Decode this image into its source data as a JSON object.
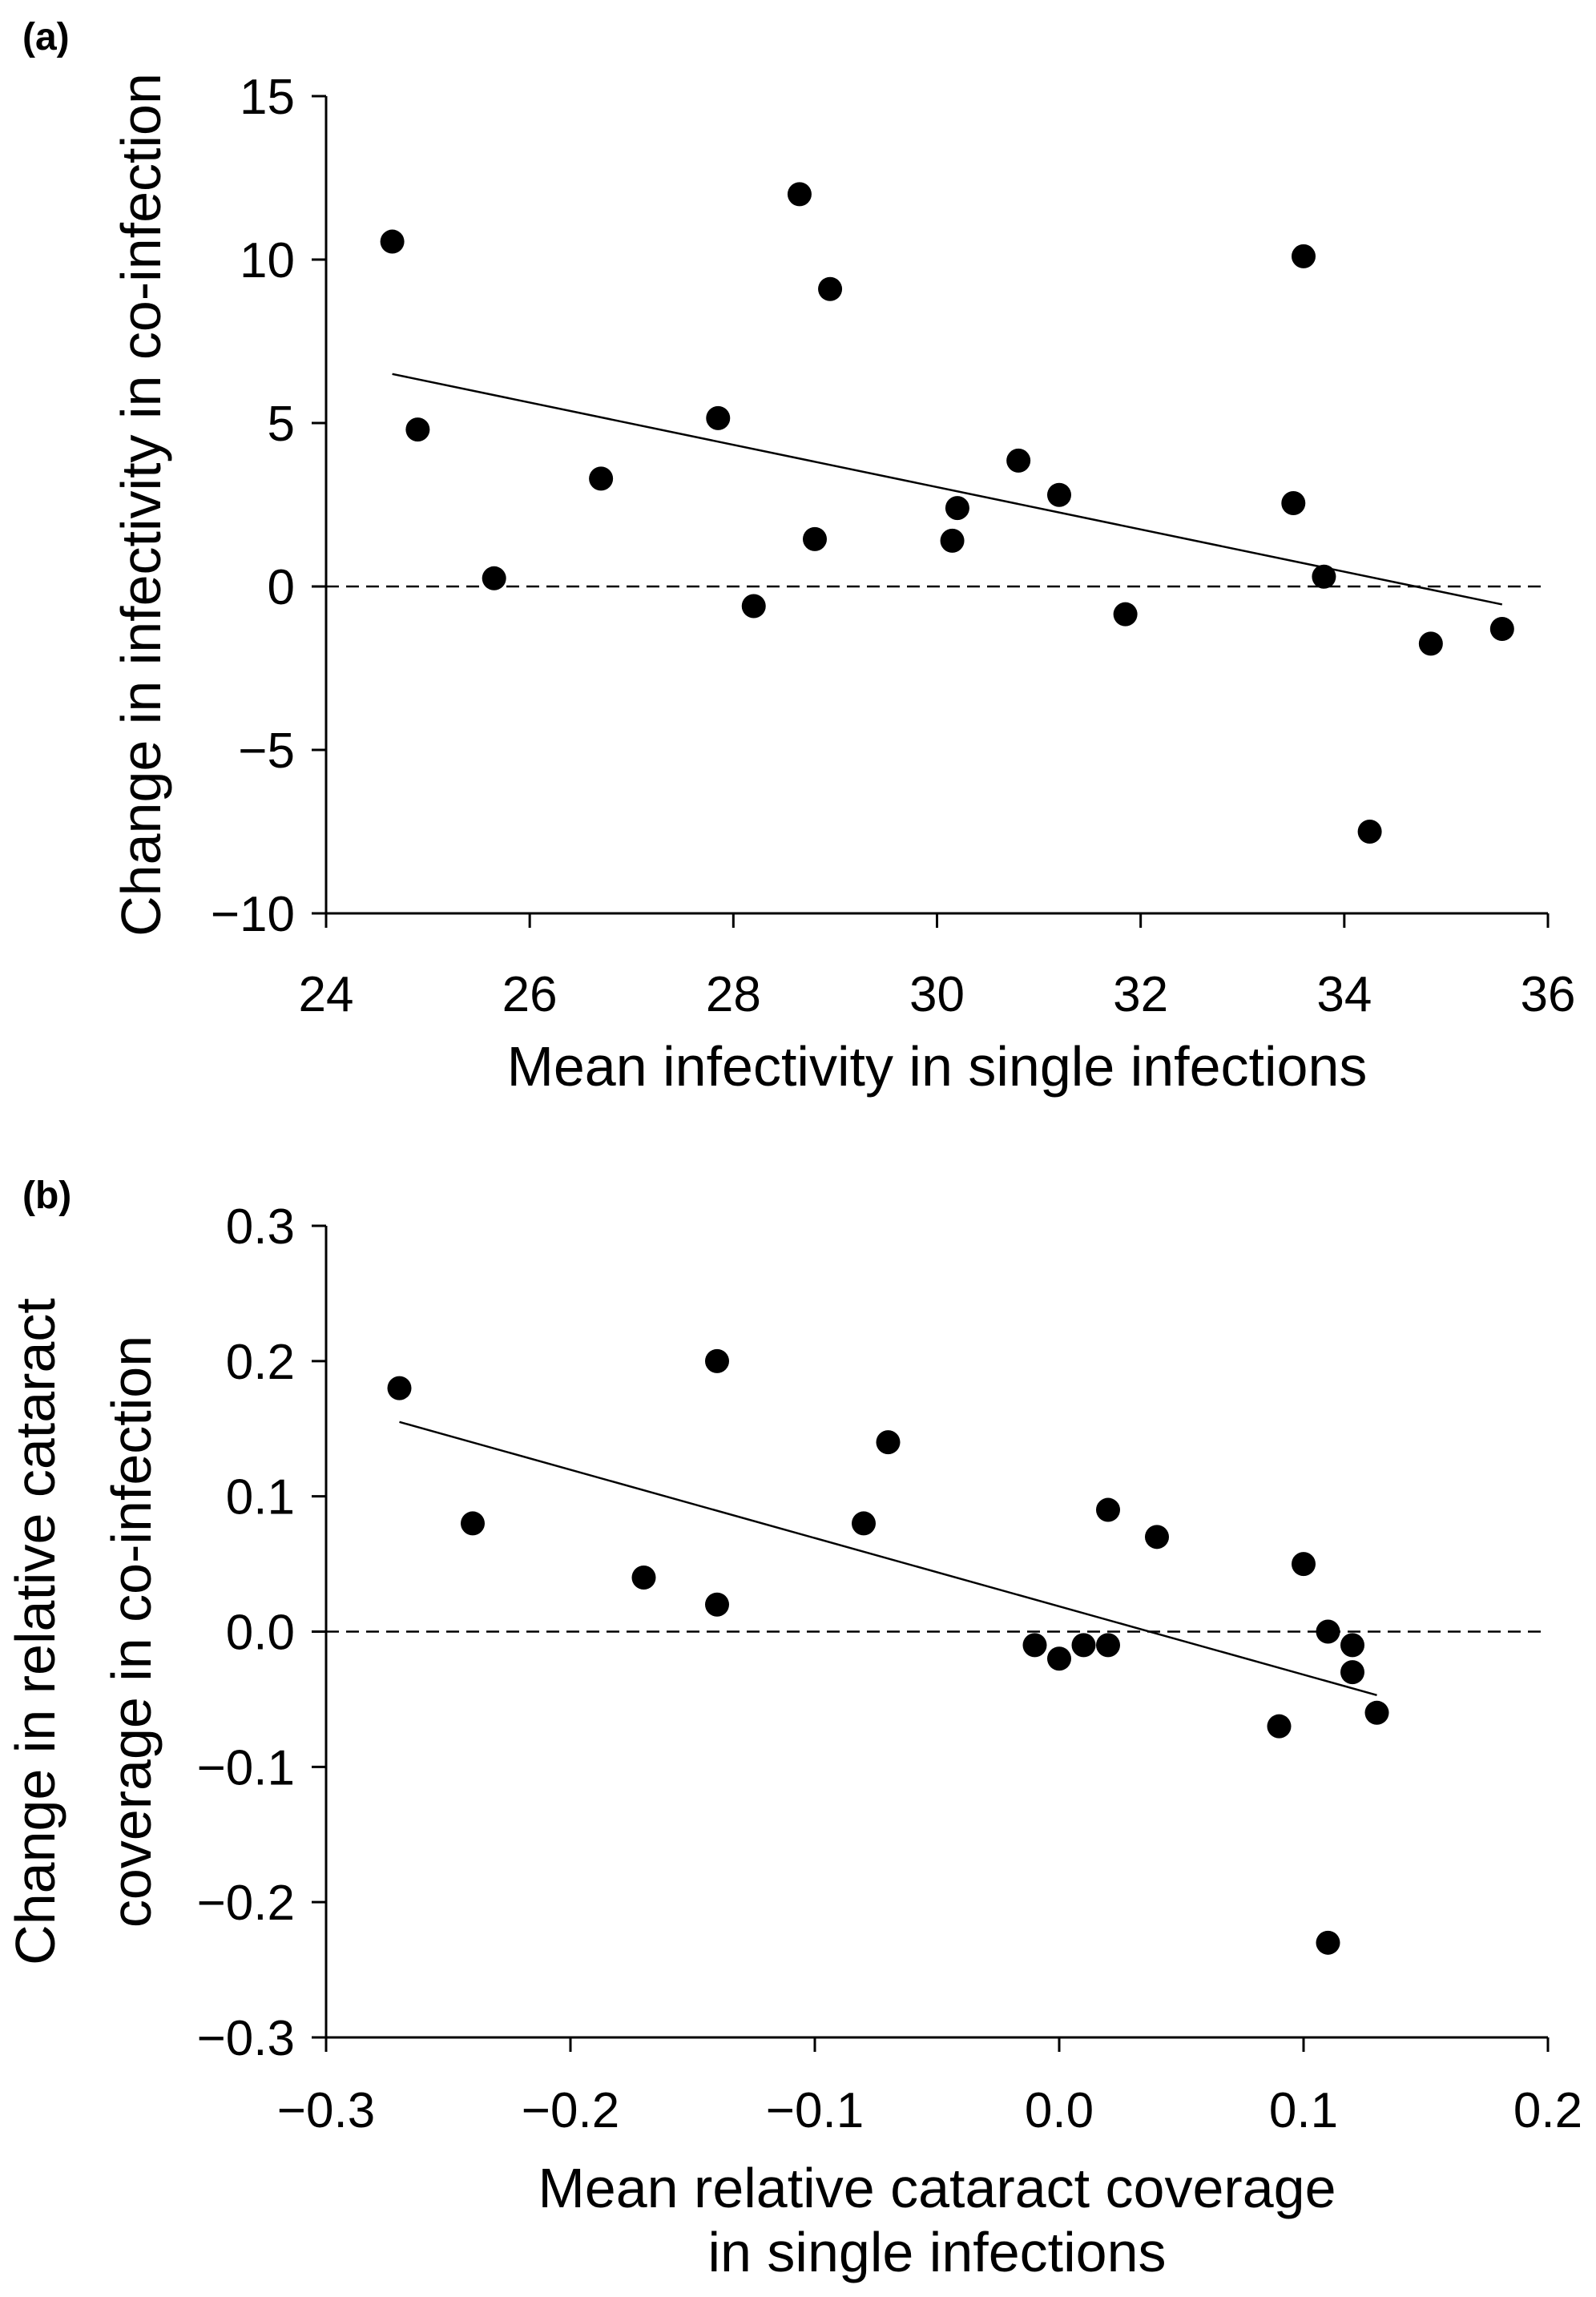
{
  "chart_data": [
    {
      "type": "scatter",
      "panel_label": "(a)",
      "xlabel": [
        "Mean infectivity in single infections"
      ],
      "ylabel": [
        "Change in infectivity in co-infection"
      ],
      "xlim": [
        24,
        36
      ],
      "ylim": [
        -10,
        15
      ],
      "xticks": [
        24,
        26,
        28,
        30,
        32,
        34,
        36
      ],
      "yticks": [
        -10,
        -5,
        0,
        5,
        10,
        15
      ],
      "xtick_labels": [
        "24",
        "26",
        "28",
        "30",
        "32",
        "34",
        "36"
      ],
      "ytick_labels": [
        "−10",
        "−5",
        "0",
        "5",
        "10",
        "15"
      ],
      "grid": false,
      "reference_line": {
        "y": 0,
        "style": "dashed"
      },
      "points": [
        {
          "x": 24.65,
          "y": 10.55
        },
        {
          "x": 24.9,
          "y": 4.8
        },
        {
          "x": 25.65,
          "y": 0.25
        },
        {
          "x": 26.7,
          "y": 3.3
        },
        {
          "x": 27.85,
          "y": 5.15
        },
        {
          "x": 28.2,
          "y": -0.6
        },
        {
          "x": 28.65,
          "y": 12.0
        },
        {
          "x": 28.8,
          "y": 1.45
        },
        {
          "x": 28.95,
          "y": 9.1
        },
        {
          "x": 30.15,
          "y": 1.4
        },
        {
          "x": 30.2,
          "y": 2.4
        },
        {
          "x": 30.8,
          "y": 3.85
        },
        {
          "x": 31.2,
          "y": 2.8
        },
        {
          "x": 31.85,
          "y": -0.85
        },
        {
          "x": 33.5,
          "y": 2.55
        },
        {
          "x": 33.6,
          "y": 10.1
        },
        {
          "x": 33.8,
          "y": 0.3
        },
        {
          "x": 34.25,
          "y": -7.5
        },
        {
          "x": 34.85,
          "y": -1.75
        },
        {
          "x": 35.55,
          "y": -1.3
        }
      ],
      "trendline": {
        "x": [
          24.65,
          35.55
        ],
        "y": [
          6.5,
          -0.55
        ]
      }
    },
    {
      "type": "scatter",
      "panel_label": "(b)",
      "xlabel": [
        "Mean relative cataract coverage",
        "in single infections"
      ],
      "ylabel": [
        "Change in relative cataract",
        "coverage in co-infection"
      ],
      "xlim": [
        -0.3,
        0.2
      ],
      "ylim": [
        -0.3,
        0.3
      ],
      "xticks": [
        -0.3,
        -0.2,
        -0.1,
        0.0,
        0.1,
        0.2
      ],
      "yticks": [
        -0.3,
        -0.2,
        -0.1,
        0.0,
        0.1,
        0.2,
        0.3
      ],
      "xtick_labels": [
        "−0.3",
        "−0.2",
        "−0.1",
        "0.0",
        "0.1",
        "0.2"
      ],
      "ytick_labels": [
        "−0.3",
        "−0.2",
        "−0.1",
        "0.0",
        "0.1",
        "0.2",
        "0.3"
      ],
      "grid": false,
      "reference_line": {
        "y": 0,
        "style": "dashed"
      },
      "points": [
        {
          "x": -0.27,
          "y": 0.18
        },
        {
          "x": -0.24,
          "y": 0.08
        },
        {
          "x": -0.17,
          "y": 0.04
        },
        {
          "x": -0.14,
          "y": 0.2
        },
        {
          "x": -0.14,
          "y": 0.02
        },
        {
          "x": -0.08,
          "y": 0.08
        },
        {
          "x": -0.07,
          "y": 0.14
        },
        {
          "x": -0.01,
          "y": -0.01
        },
        {
          "x": 0.0,
          "y": -0.02
        },
        {
          "x": 0.01,
          "y": -0.01
        },
        {
          "x": 0.02,
          "y": -0.01
        },
        {
          "x": 0.02,
          "y": 0.09
        },
        {
          "x": 0.04,
          "y": 0.07
        },
        {
          "x": 0.09,
          "y": -0.07
        },
        {
          "x": 0.1,
          "y": 0.05
        },
        {
          "x": 0.11,
          "y": 0.0
        },
        {
          "x": 0.12,
          "y": -0.01
        },
        {
          "x": 0.12,
          "y": -0.03
        },
        {
          "x": 0.13,
          "y": -0.06
        },
        {
          "x": 0.11,
          "y": -0.23
        }
      ],
      "trendline": {
        "x": [
          -0.27,
          0.13
        ],
        "y": [
          0.155,
          -0.047
        ]
      }
    }
  ]
}
